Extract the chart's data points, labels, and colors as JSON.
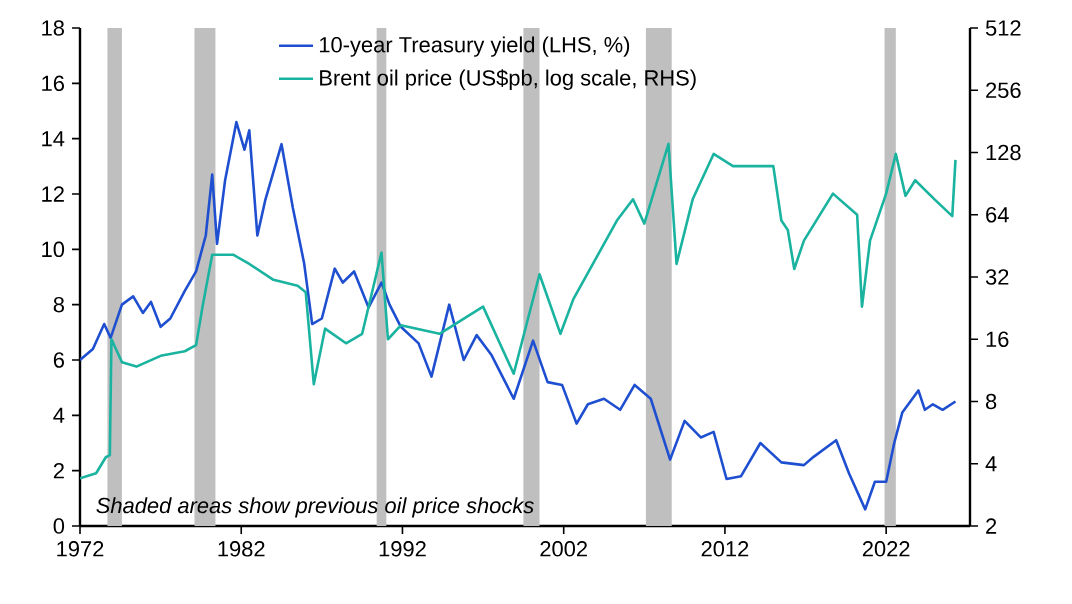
{
  "chart_data": {
    "type": "line",
    "xlim": [
      1972,
      2027.2
    ],
    "xticks": [
      1972,
      1982,
      1992,
      2002,
      2012,
      2022
    ],
    "ylim": [
      0,
      18
    ],
    "yticks": [
      0,
      2,
      4,
      6,
      8,
      10,
      12,
      14,
      16,
      18
    ],
    "y2lim": [
      2,
      512
    ],
    "y2ticks": [
      2,
      4,
      8,
      16,
      32,
      64,
      128,
      256,
      512
    ],
    "log": "y2",
    "legend": "top right",
    "marker": "none",
    "line_style": "solid",
    "series": [
      {
        "name": "10-year Treasury yield (LHS, %)",
        "color": "#1f4fd1",
        "x": [
          1972.0,
          1972.8,
          1973.5,
          1973.9,
          1974.6,
          1975.3,
          1975.9,
          1976.4,
          1977.0,
          1977.6,
          1978.5,
          1979.2,
          1979.8,
          1980.2,
          1980.5,
          1981.0,
          1981.7,
          1982.2,
          1982.5,
          1983.0,
          1983.5,
          1984.5,
          1985.2,
          1985.9,
          1986.4,
          1987.0,
          1987.8,
          1988.3,
          1989.0,
          1989.9,
          1990.7,
          1991.2,
          1991.9,
          1993.0,
          1993.8,
          1994.9,
          1995.8,
          1996.6,
          1997.5,
          1998.9,
          2000.1,
          2001.0,
          2001.9,
          2002.8,
          2003.5,
          2004.5,
          2005.5,
          2006.4,
          2007.4,
          2008.6,
          2009.5,
          2010.5,
          2011.3,
          2012.1,
          2013.0,
          2014.2,
          2015.5,
          2016.9,
          2017.5,
          2018.9,
          2019.7,
          2020.7,
          2021.3,
          2022.0,
          2022.5,
          2023.0,
          2024.0,
          2024.4,
          2024.9,
          2025.5,
          2026.3
        ],
        "values": [
          6.0,
          6.4,
          7.3,
          6.8,
          8.0,
          8.3,
          7.7,
          8.1,
          7.2,
          7.5,
          8.5,
          9.2,
          10.5,
          12.7,
          10.2,
          12.5,
          14.6,
          13.6,
          14.3,
          10.5,
          11.8,
          13.8,
          11.5,
          9.5,
          7.3,
          7.5,
          9.3,
          8.8,
          9.2,
          7.9,
          8.8,
          8.0,
          7.2,
          6.6,
          5.4,
          8.0,
          6.0,
          6.9,
          6.2,
          4.6,
          6.7,
          5.2,
          5.1,
          3.7,
          4.4,
          4.6,
          4.2,
          5.1,
          4.6,
          2.4,
          3.8,
          3.2,
          3.4,
          1.7,
          1.8,
          3.0,
          2.3,
          2.2,
          2.5,
          3.1,
          1.9,
          0.6,
          1.6,
          1.6,
          3.0,
          4.1,
          4.9,
          4.2,
          4.4,
          4.2,
          4.5
        ]
      },
      {
        "name": "Brent oil price (US$pb, log scale, RHS)",
        "color": "#1ab3a0",
        "axis": "y2",
        "x": [
          1972.0,
          1973.0,
          1973.6,
          1973.85,
          1973.95,
          1974.6,
          1975.5,
          1977.0,
          1978.5,
          1979.2,
          1979.6,
          1980.2,
          1981.5,
          1982.5,
          1984.0,
          1985.5,
          1986.0,
          1986.5,
          1987.2,
          1988.5,
          1989.5,
          1990.7,
          1991.1,
          1991.9,
          1994.3,
          1997.0,
          1998.9,
          2000.5,
          2001.8,
          2002.6,
          2005.3,
          2006.3,
          2007.0,
          2008.5,
          2009.0,
          2010.0,
          2011.3,
          2012.5,
          2014.2,
          2015.0,
          2015.5,
          2015.9,
          2016.3,
          2016.9,
          2018.7,
          2020.2,
          2020.5,
          2021.0,
          2022.0,
          2022.6,
          2023.2,
          2023.8,
          2025.0,
          2026.1,
          2026.3
        ],
        "values": [
          3.4,
          3.6,
          4.3,
          4.4,
          16,
          12.4,
          11.8,
          13.3,
          14,
          15,
          23,
          41,
          41,
          37,
          31,
          29,
          27,
          9.7,
          18,
          15.3,
          17,
          42,
          16,
          18.7,
          17,
          23,
          10.9,
          33,
          17,
          25,
          60,
          76,
          58,
          141,
          37,
          76,
          126,
          110,
          110,
          110,
          60,
          54,
          35,
          48,
          81,
          64,
          23,
          48,
          81,
          126,
          79,
          94,
          76,
          63,
          118
        ]
      }
    ],
    "bands": [
      {
        "axis": "x",
        "from": 1973.7,
        "to": 1974.6,
        "color": "#bfbfbf"
      },
      {
        "axis": "x",
        "from": 1979.1,
        "to": 1980.4,
        "color": "#bfbfbf"
      },
      {
        "axis": "x",
        "from": 1990.4,
        "to": 1991.0,
        "color": "#bfbfbf"
      },
      {
        "axis": "x",
        "from": 1999.5,
        "to": 2000.5,
        "color": "#bfbfbf"
      },
      {
        "axis": "x",
        "from": 2007.1,
        "to": 2008.7,
        "color": "#bfbfbf"
      },
      {
        "axis": "x",
        "from": 2021.9,
        "to": 2022.6,
        "color": "#bfbfbf"
      }
    ],
    "annotations": [
      "Shaded areas show previous oil price shocks"
    ]
  }
}
